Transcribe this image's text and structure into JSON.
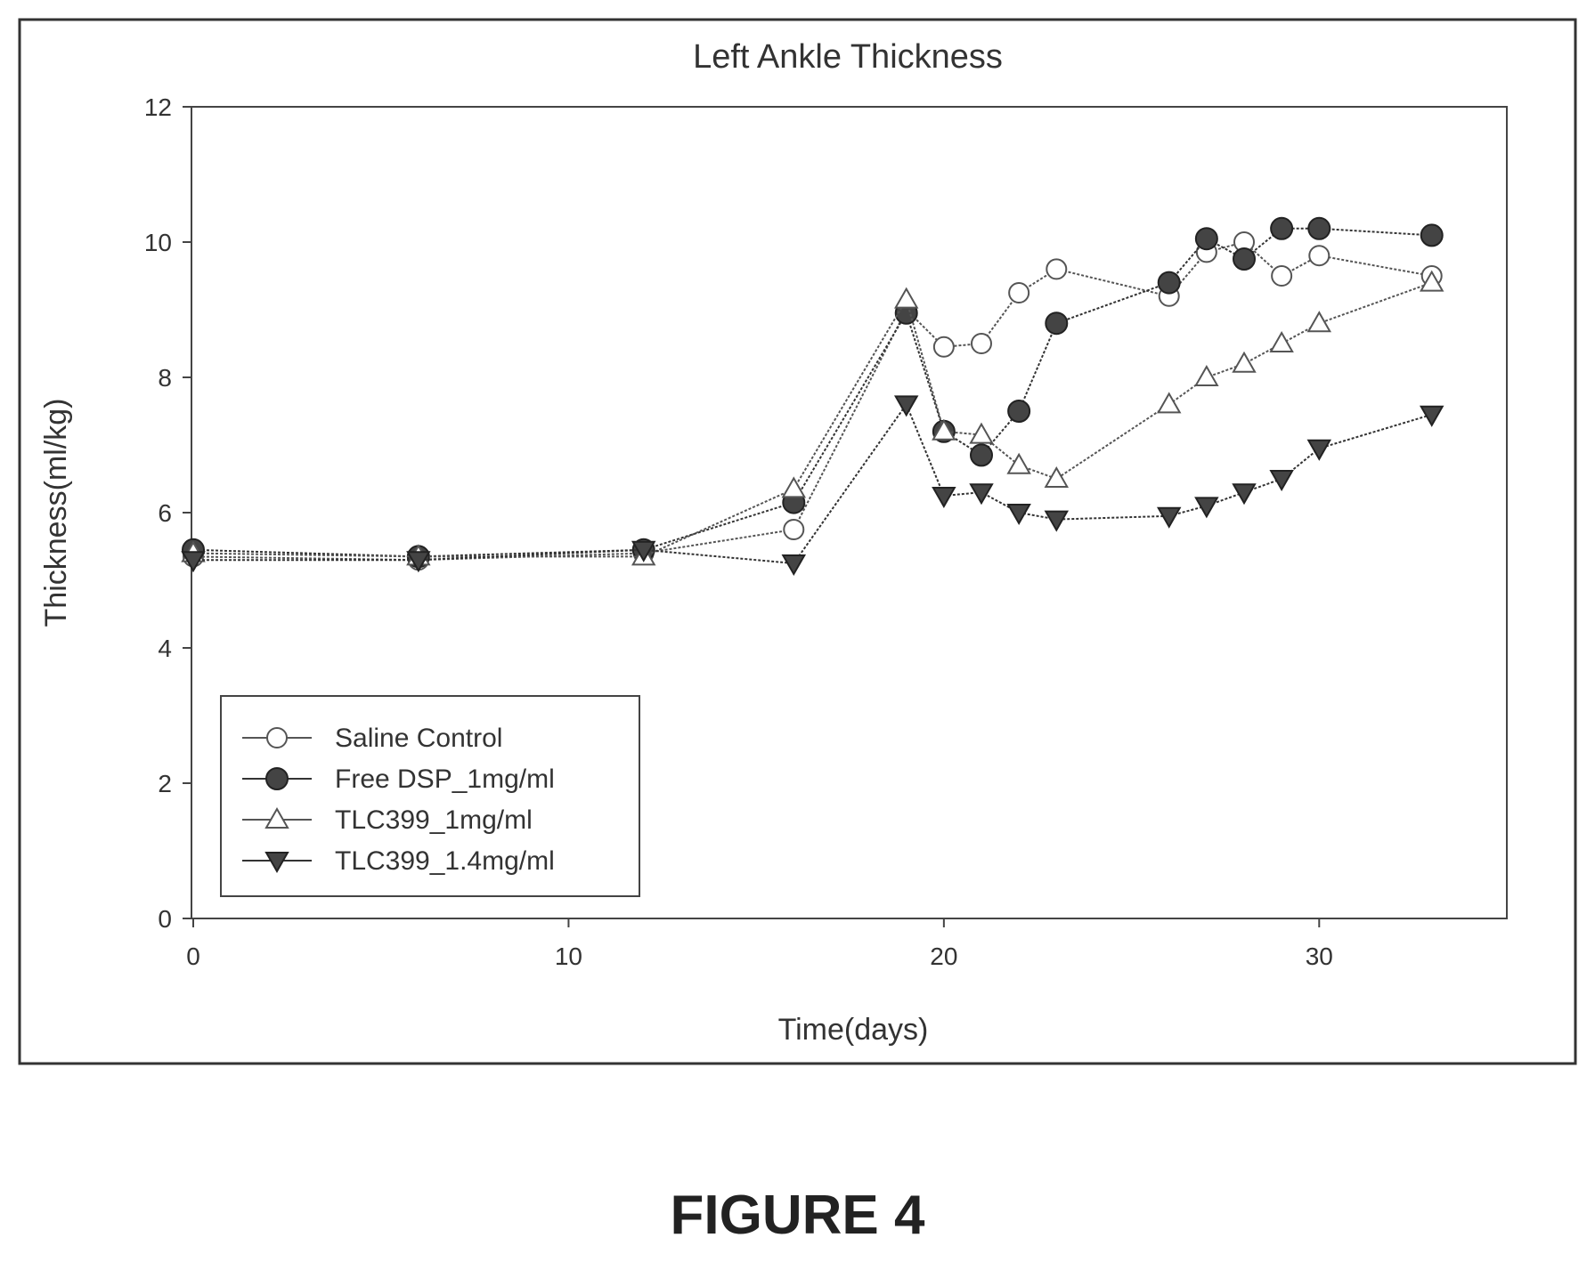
{
  "figure_label": "FIGURE 4",
  "chart_data": {
    "type": "line",
    "title": "Left Ankle Thickness",
    "xlabel": "Time(days)",
    "ylabel": "Thickness(ml/kg)",
    "xlim": [
      0,
      35
    ],
    "ylim": [
      0,
      12
    ],
    "xticks": [
      0,
      10,
      20,
      30
    ],
    "yticks": [
      0,
      2,
      4,
      6,
      8,
      10,
      12
    ],
    "grid": false,
    "legend_position": "bottom-left",
    "series": [
      {
        "name": "Saline Control",
        "marker": "open-circle",
        "color": "#555555",
        "x": [
          0,
          6,
          12,
          16,
          19,
          20,
          21,
          22,
          23,
          26,
          27,
          28,
          29,
          30,
          33
        ],
        "y": [
          5.35,
          5.3,
          5.4,
          5.75,
          9.0,
          8.45,
          8.5,
          9.25,
          9.6,
          9.2,
          9.85,
          10.0,
          9.5,
          9.8,
          9.5
        ]
      },
      {
        "name": "Free DSP_1mg/ml",
        "marker": "filled-circle",
        "color": "#333333",
        "x": [
          0,
          6,
          12,
          16,
          19,
          20,
          21,
          22,
          23,
          26,
          27,
          28,
          29,
          30,
          33
        ],
        "y": [
          5.45,
          5.35,
          5.45,
          6.15,
          8.95,
          7.2,
          6.85,
          7.5,
          8.8,
          9.4,
          10.05,
          9.75,
          10.2,
          10.2,
          10.1
        ]
      },
      {
        "name": "TLC399_1mg/ml",
        "marker": "open-triangle",
        "color": "#555555",
        "x": [
          0,
          6,
          12,
          16,
          19,
          20,
          21,
          22,
          23,
          26,
          27,
          28,
          29,
          30,
          33
        ],
        "y": [
          5.4,
          5.35,
          5.35,
          6.35,
          9.15,
          7.2,
          7.15,
          6.7,
          6.5,
          7.6,
          8.0,
          8.2,
          8.5,
          8.8,
          9.4
        ]
      },
      {
        "name": "TLC399_1.4mg/ml",
        "marker": "filled-down-triangle",
        "color": "#333333",
        "x": [
          0,
          6,
          12,
          16,
          19,
          20,
          21,
          22,
          23,
          26,
          27,
          28,
          29,
          30,
          33
        ],
        "y": [
          5.3,
          5.3,
          5.45,
          5.25,
          7.6,
          6.25,
          6.3,
          6.0,
          5.9,
          5.95,
          6.1,
          6.3,
          6.5,
          6.95,
          7.45
        ]
      }
    ]
  }
}
